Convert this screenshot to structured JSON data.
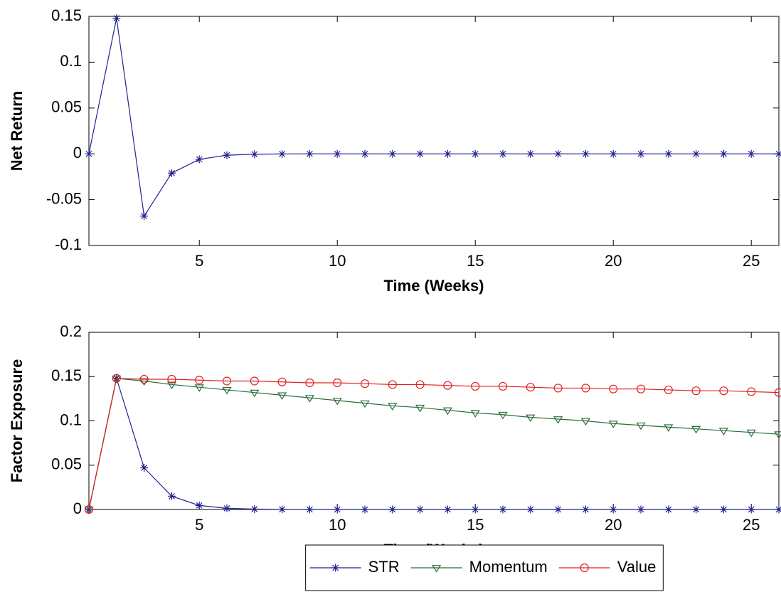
{
  "chart_data": [
    {
      "type": "line",
      "ylabel": "Net Return",
      "xlabel": "Time (Weeks)",
      "x": [
        1,
        2,
        3,
        4,
        5,
        6,
        7,
        8,
        9,
        10,
        11,
        12,
        13,
        14,
        15,
        16,
        17,
        18,
        19,
        20,
        21,
        22,
        23,
        24,
        25,
        26
      ],
      "xlim": [
        1,
        26
      ],
      "xticks": [
        5,
        10,
        15,
        20,
        25
      ],
      "ylim": [
        -0.1,
        0.15
      ],
      "yticks": [
        -0.1,
        -0.05,
        0,
        0.05,
        0.1,
        0.15
      ],
      "series": [
        {
          "color": "#22228f",
          "marker": "star",
          "values": [
            0,
            0.148,
            -0.068,
            -0.021,
            -0.006,
            -0.0015,
            -0.0004,
            -0.0001,
            0,
            0,
            0,
            0,
            0,
            0,
            0,
            0,
            0,
            0,
            0,
            0,
            0,
            0,
            0,
            0,
            0,
            0
          ]
        }
      ]
    },
    {
      "type": "line",
      "ylabel": "Factor Exposure",
      "xlabel": "Time (Weeks)",
      "x": [
        1,
        2,
        3,
        4,
        5,
        6,
        7,
        8,
        9,
        10,
        11,
        12,
        13,
        14,
        15,
        16,
        17,
        18,
        19,
        20,
        21,
        22,
        23,
        24,
        25,
        26
      ],
      "xlim": [
        1,
        26
      ],
      "xticks": [
        5,
        10,
        15,
        20,
        25
      ],
      "ylim": [
        0,
        0.2
      ],
      "yticks": [
        0,
        0.05,
        0.1,
        0.15,
        0.2
      ],
      "legend": "below",
      "series": [
        {
          "name": "STR",
          "color": "#22228f",
          "marker": "star",
          "values": [
            0,
            0.148,
            0.047,
            0.015,
            0.0045,
            0.0013,
            0.0004,
            0.0001,
            0,
            0,
            0,
            0,
            0,
            0,
            0,
            0,
            0,
            0,
            0,
            0,
            0,
            0,
            0,
            0,
            0,
            0
          ]
        },
        {
          "name": "Momentum",
          "color": "#2d6b3a",
          "marker": "triangle-down",
          "values": [
            0,
            0.148,
            0.145,
            0.141,
            0.138,
            0.135,
            0.132,
            0.129,
            0.126,
            0.123,
            0.12,
            0.117,
            0.115,
            0.112,
            0.109,
            0.107,
            0.104,
            0.102,
            0.1,
            0.097,
            0.095,
            0.093,
            0.091,
            0.089,
            0.087,
            0.085
          ]
        },
        {
          "name": "Value",
          "color": "#e02020",
          "marker": "circle",
          "values": [
            0,
            0.148,
            0.147,
            0.147,
            0.146,
            0.145,
            0.145,
            0.144,
            0.143,
            0.143,
            0.142,
            0.141,
            0.141,
            0.14,
            0.139,
            0.139,
            0.138,
            0.137,
            0.137,
            0.136,
            0.136,
            0.135,
            0.134,
            0.134,
            0.133,
            0.132
          ]
        }
      ]
    }
  ]
}
